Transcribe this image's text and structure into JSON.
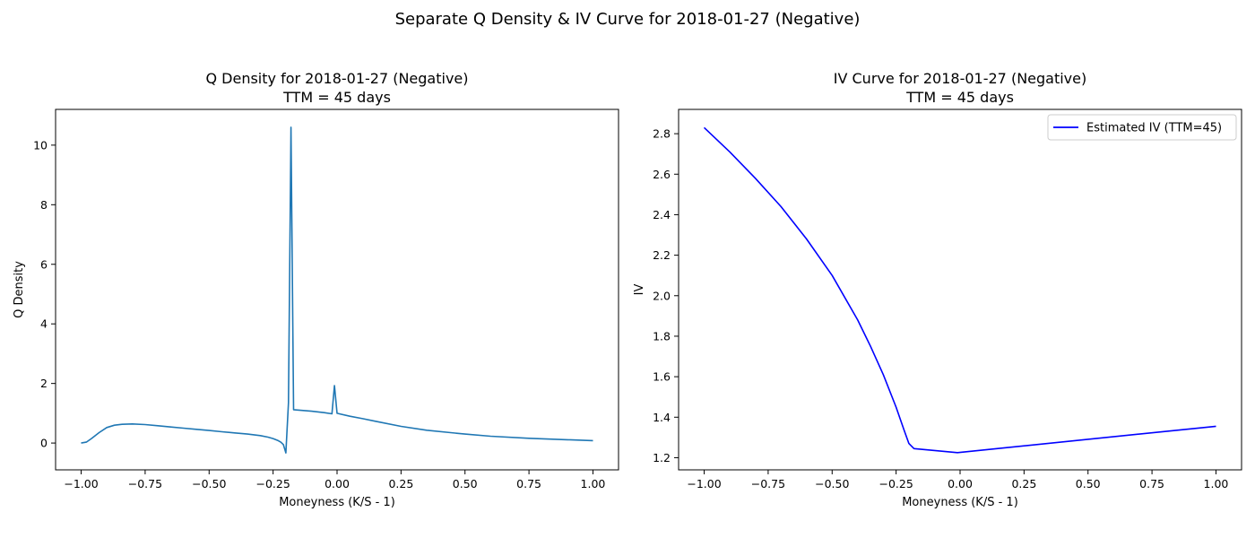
{
  "figure": {
    "suptitle": "Separate Q Density & IV Curve for 2018-01-27 (Negative)"
  },
  "chart_data": [
    {
      "type": "line",
      "title": "Q Density for 2018-01-27 (Negative)",
      "subtitle": "TTM = 45 days",
      "xlabel": "Moneyness (K/S - 1)",
      "ylabel": "Q Density",
      "xlim": [
        -1.1,
        1.1
      ],
      "ylim": [
        -0.9,
        11.2
      ],
      "xticks": [
        -1.0,
        -0.75,
        -0.5,
        -0.25,
        0.0,
        0.25,
        0.5,
        0.75,
        1.0
      ],
      "xtick_labels": [
        "−1.00",
        "−0.75",
        "−0.50",
        "−0.25",
        "0.00",
        "0.25",
        "0.50",
        "0.75",
        "1.00"
      ],
      "yticks": [
        0,
        2,
        4,
        6,
        8,
        10
      ],
      "ytick_labels": [
        "0",
        "2",
        "4",
        "6",
        "8",
        "10"
      ],
      "grid": false,
      "legend": null,
      "series": [
        {
          "color": "#1f77b4",
          "x": [
            -1.0,
            -0.98,
            -0.96,
            -0.93,
            -0.9,
            -0.87,
            -0.84,
            -0.8,
            -0.75,
            -0.7,
            -0.65,
            -0.6,
            -0.55,
            -0.5,
            -0.45,
            -0.4,
            -0.35,
            -0.3,
            -0.27,
            -0.25,
            -0.23,
            -0.22,
            -0.21,
            -0.2,
            -0.19,
            -0.18,
            -0.17,
            -0.1,
            -0.05,
            -0.02,
            -0.01,
            0.0,
            0.05,
            0.1,
            0.15,
            0.25,
            0.35,
            0.5,
            0.6,
            0.75,
            0.9,
            1.0
          ],
          "values": [
            0.0,
            0.03,
            0.15,
            0.35,
            0.52,
            0.6,
            0.63,
            0.64,
            0.62,
            0.58,
            0.54,
            0.5,
            0.46,
            0.42,
            0.38,
            0.34,
            0.3,
            0.25,
            0.2,
            0.15,
            0.08,
            0.03,
            -0.05,
            -0.33,
            1.35,
            10.6,
            1.12,
            1.07,
            1.02,
            0.98,
            1.93,
            1.0,
            0.9,
            0.82,
            0.73,
            0.56,
            0.43,
            0.3,
            0.23,
            0.16,
            0.11,
            0.08
          ]
        }
      ]
    },
    {
      "type": "line",
      "title": "IV Curve for 2018-01-27 (Negative)",
      "subtitle": "TTM = 45 days",
      "xlabel": "Moneyness (K/S - 1)",
      "ylabel": "IV",
      "xlim": [
        -1.1,
        1.1
      ],
      "ylim": [
        1.14,
        2.92
      ],
      "xticks": [
        -1.0,
        -0.75,
        -0.5,
        -0.25,
        0.0,
        0.25,
        0.5,
        0.75,
        1.0
      ],
      "xtick_labels": [
        "−1.00",
        "−0.75",
        "−0.50",
        "−0.25",
        "0.00",
        "0.25",
        "0.50",
        "0.75",
        "1.00"
      ],
      "yticks": [
        1.2,
        1.4,
        1.6,
        1.8,
        2.0,
        2.2,
        2.4,
        2.6,
        2.8
      ],
      "ytick_labels": [
        "1.2",
        "1.4",
        "1.6",
        "1.8",
        "2.0",
        "2.2",
        "2.4",
        "2.6",
        "2.8"
      ],
      "grid": false,
      "legend": "top-right",
      "series": [
        {
          "name": "Estimated IV (TTM=45)",
          "color": "#0000ff",
          "x": [
            -1.0,
            -0.9,
            -0.8,
            -0.7,
            -0.6,
            -0.5,
            -0.4,
            -0.35,
            -0.3,
            -0.25,
            -0.22,
            -0.2,
            -0.18,
            -0.01,
            1.0
          ],
          "values": [
            2.83,
            2.71,
            2.58,
            2.44,
            2.28,
            2.1,
            1.88,
            1.75,
            1.61,
            1.45,
            1.34,
            1.27,
            1.245,
            1.225,
            1.355
          ]
        }
      ]
    }
  ]
}
